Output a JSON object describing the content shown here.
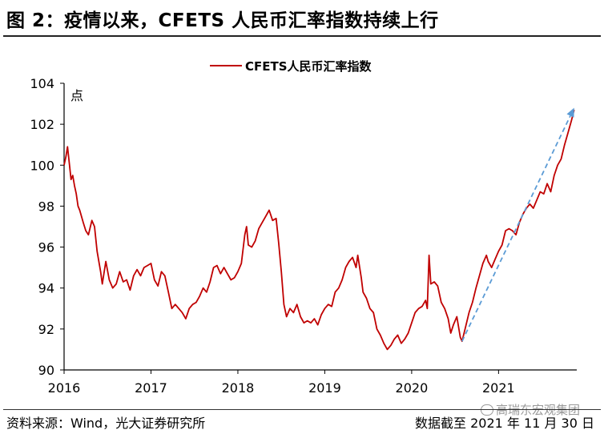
{
  "header": {
    "title": "图 2：疫情以来，CFETS 人民币汇率指数持续上行"
  },
  "footer": {
    "source": "资料来源：Wind，光大证券研究所",
    "date_note": "数据截至 2021 年 11 月 30 日"
  },
  "watermark": {
    "text": "高瑞东宏观集团"
  },
  "colors": {
    "series_line": "#c00000",
    "trend_arrow": "#5b9bd5",
    "axis": "#000000"
  },
  "chart_data": {
    "type": "line",
    "title": "",
    "xlabel": "",
    "ylabel": "点",
    "ylim": [
      90,
      104
    ],
    "yticks": [
      90,
      92,
      94,
      96,
      98,
      100,
      102,
      104
    ],
    "xlim": [
      2016.0,
      2021.9
    ],
    "xticks": [
      2016,
      2017,
      2018,
      2019,
      2020,
      2021
    ],
    "xtick_labels": [
      "2016",
      "2017",
      "2018",
      "2019",
      "2020",
      "2021"
    ],
    "legend": {
      "position": "top-center"
    },
    "series": [
      {
        "name": "CFETS人民币汇率指数",
        "points": [
          [
            2016.0,
            100.0
          ],
          [
            2016.02,
            100.4
          ],
          [
            2016.04,
            100.9
          ],
          [
            2016.06,
            100.1
          ],
          [
            2016.08,
            99.3
          ],
          [
            2016.1,
            99.5
          ],
          [
            2016.12,
            99.0
          ],
          [
            2016.14,
            98.6
          ],
          [
            2016.16,
            98.0
          ],
          [
            2016.18,
            97.8
          ],
          [
            2016.22,
            97.2
          ],
          [
            2016.25,
            96.8
          ],
          [
            2016.28,
            96.6
          ],
          [
            2016.32,
            97.3
          ],
          [
            2016.35,
            97.0
          ],
          [
            2016.38,
            95.8
          ],
          [
            2016.42,
            94.8
          ],
          [
            2016.44,
            94.2
          ],
          [
            2016.48,
            95.3
          ],
          [
            2016.52,
            94.4
          ],
          [
            2016.56,
            94.0
          ],
          [
            2016.6,
            94.2
          ],
          [
            2016.64,
            94.8
          ],
          [
            2016.68,
            94.3
          ],
          [
            2016.72,
            94.4
          ],
          [
            2016.76,
            93.9
          ],
          [
            2016.8,
            94.6
          ],
          [
            2016.84,
            94.9
          ],
          [
            2016.88,
            94.6
          ],
          [
            2016.92,
            95.0
          ],
          [
            2016.96,
            95.1
          ],
          [
            2017.0,
            95.2
          ],
          [
            2017.04,
            94.4
          ],
          [
            2017.08,
            94.1
          ],
          [
            2017.12,
            94.8
          ],
          [
            2017.16,
            94.6
          ],
          [
            2017.2,
            93.8
          ],
          [
            2017.24,
            93.0
          ],
          [
            2017.28,
            93.2
          ],
          [
            2017.32,
            93.0
          ],
          [
            2017.36,
            92.8
          ],
          [
            2017.4,
            92.5
          ],
          [
            2017.44,
            93.0
          ],
          [
            2017.48,
            93.2
          ],
          [
            2017.52,
            93.3
          ],
          [
            2017.56,
            93.6
          ],
          [
            2017.6,
            94.0
          ],
          [
            2017.64,
            93.8
          ],
          [
            2017.68,
            94.3
          ],
          [
            2017.72,
            95.0
          ],
          [
            2017.76,
            95.1
          ],
          [
            2017.8,
            94.7
          ],
          [
            2017.84,
            95.0
          ],
          [
            2017.88,
            94.7
          ],
          [
            2017.92,
            94.4
          ],
          [
            2017.96,
            94.5
          ],
          [
            2018.0,
            94.8
          ],
          [
            2018.04,
            95.2
          ],
          [
            2018.08,
            96.6
          ],
          [
            2018.1,
            97.0
          ],
          [
            2018.12,
            96.1
          ],
          [
            2018.16,
            96.0
          ],
          [
            2018.2,
            96.3
          ],
          [
            2018.24,
            96.9
          ],
          [
            2018.28,
            97.2
          ],
          [
            2018.32,
            97.5
          ],
          [
            2018.36,
            97.8
          ],
          [
            2018.4,
            97.3
          ],
          [
            2018.44,
            97.4
          ],
          [
            2018.47,
            96.2
          ],
          [
            2018.5,
            94.8
          ],
          [
            2018.53,
            93.2
          ],
          [
            2018.56,
            92.6
          ],
          [
            2018.6,
            93.0
          ],
          [
            2018.64,
            92.8
          ],
          [
            2018.68,
            93.2
          ],
          [
            2018.72,
            92.6
          ],
          [
            2018.76,
            92.3
          ],
          [
            2018.8,
            92.4
          ],
          [
            2018.84,
            92.3
          ],
          [
            2018.88,
            92.5
          ],
          [
            2018.92,
            92.2
          ],
          [
            2018.96,
            92.7
          ],
          [
            2019.0,
            93.0
          ],
          [
            2019.04,
            93.2
          ],
          [
            2019.08,
            93.1
          ],
          [
            2019.12,
            93.8
          ],
          [
            2019.16,
            94.0
          ],
          [
            2019.2,
            94.4
          ],
          [
            2019.24,
            95.0
          ],
          [
            2019.28,
            95.3
          ],
          [
            2019.32,
            95.5
          ],
          [
            2019.36,
            95.0
          ],
          [
            2019.38,
            95.6
          ],
          [
            2019.42,
            94.5
          ],
          [
            2019.44,
            93.8
          ],
          [
            2019.48,
            93.5
          ],
          [
            2019.52,
            93.0
          ],
          [
            2019.56,
            92.8
          ],
          [
            2019.6,
            92.0
          ],
          [
            2019.64,
            91.7
          ],
          [
            2019.68,
            91.3
          ],
          [
            2019.72,
            91.0
          ],
          [
            2019.76,
            91.2
          ],
          [
            2019.8,
            91.5
          ],
          [
            2019.84,
            91.7
          ],
          [
            2019.88,
            91.3
          ],
          [
            2019.92,
            91.5
          ],
          [
            2019.96,
            91.8
          ],
          [
            2020.0,
            92.3
          ],
          [
            2020.04,
            92.8
          ],
          [
            2020.08,
            93.0
          ],
          [
            2020.12,
            93.1
          ],
          [
            2020.16,
            93.4
          ],
          [
            2020.18,
            93.0
          ],
          [
            2020.2,
            95.6
          ],
          [
            2020.22,
            94.2
          ],
          [
            2020.26,
            94.3
          ],
          [
            2020.3,
            94.1
          ],
          [
            2020.34,
            93.3
          ],
          [
            2020.38,
            93.0
          ],
          [
            2020.42,
            92.5
          ],
          [
            2020.45,
            91.8
          ],
          [
            2020.48,
            92.2
          ],
          [
            2020.52,
            92.6
          ],
          [
            2020.56,
            91.6
          ],
          [
            2020.58,
            91.4
          ],
          [
            2020.62,
            92.1
          ],
          [
            2020.66,
            92.8
          ],
          [
            2020.7,
            93.3
          ],
          [
            2020.74,
            94.0
          ],
          [
            2020.78,
            94.6
          ],
          [
            2020.82,
            95.2
          ],
          [
            2020.86,
            95.6
          ],
          [
            2020.88,
            95.3
          ],
          [
            2020.92,
            95.0
          ],
          [
            2020.96,
            95.4
          ],
          [
            2021.0,
            95.8
          ],
          [
            2021.04,
            96.1
          ],
          [
            2021.08,
            96.8
          ],
          [
            2021.12,
            96.9
          ],
          [
            2021.16,
            96.8
          ],
          [
            2021.2,
            96.6
          ],
          [
            2021.24,
            97.2
          ],
          [
            2021.28,
            97.6
          ],
          [
            2021.32,
            97.9
          ],
          [
            2021.36,
            98.1
          ],
          [
            2021.4,
            97.9
          ],
          [
            2021.44,
            98.3
          ],
          [
            2021.48,
            98.7
          ],
          [
            2021.52,
            98.6
          ],
          [
            2021.56,
            99.1
          ],
          [
            2021.6,
            98.7
          ],
          [
            2021.64,
            99.5
          ],
          [
            2021.68,
            100.0
          ],
          [
            2021.72,
            100.3
          ],
          [
            2021.76,
            101.0
          ],
          [
            2021.8,
            101.6
          ],
          [
            2021.84,
            102.2
          ],
          [
            2021.87,
            102.7
          ]
        ]
      }
    ],
    "annotations": [
      {
        "type": "trend-arrow",
        "from": [
          2020.58,
          91.4
        ],
        "to": [
          2021.87,
          102.8
        ]
      }
    ]
  }
}
